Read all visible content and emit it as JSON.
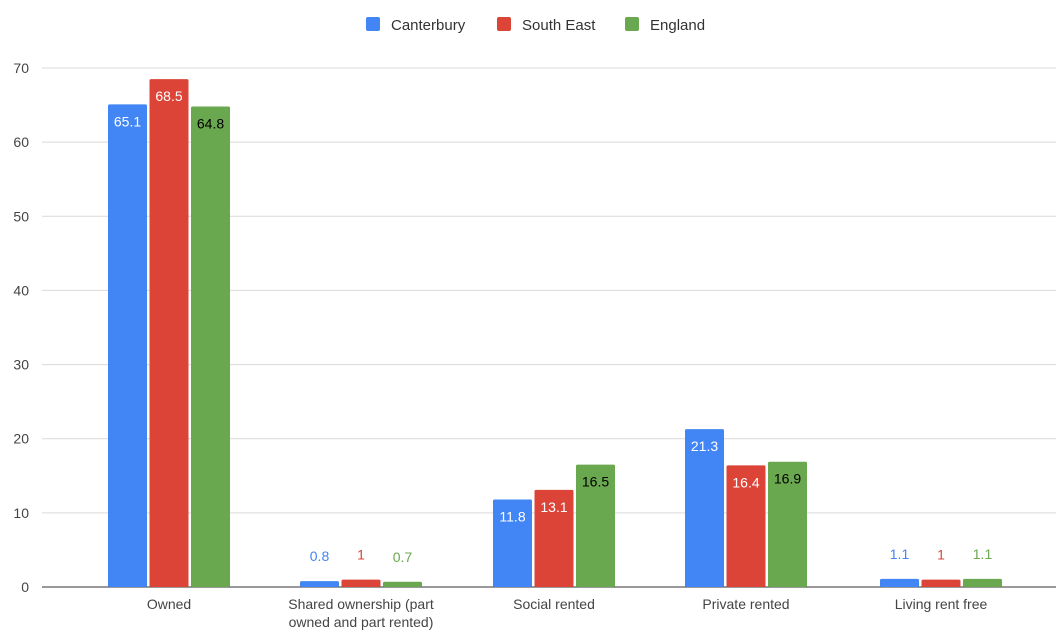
{
  "chart_data": {
    "type": "bar",
    "categories": [
      [
        "Owned"
      ],
      [
        "Shared ownership (part",
        "owned and part rented)"
      ],
      [
        "Social rented"
      ],
      [
        "Private rented"
      ],
      [
        "Living rent free"
      ]
    ],
    "series": [
      {
        "name": "Canterbury",
        "color": "#4285f4",
        "values": [
          65.1,
          0.8,
          11.8,
          21.3,
          1.1
        ]
      },
      {
        "name": "South East",
        "color": "#db4437",
        "values": [
          68.5,
          1,
          13.1,
          16.4,
          1
        ]
      },
      {
        "name": "England",
        "color": "#6aa84f",
        "values": [
          64.8,
          0.7,
          16.5,
          16.9,
          1.1
        ]
      }
    ],
    "yticks": [
      "0",
      "10",
      "20",
      "30",
      "40",
      "50",
      "60",
      "70"
    ],
    "ylim": [
      0,
      70
    ],
    "grid": true,
    "legend_position": "top-center",
    "title": "",
    "xlabel": "",
    "ylabel": ""
  }
}
